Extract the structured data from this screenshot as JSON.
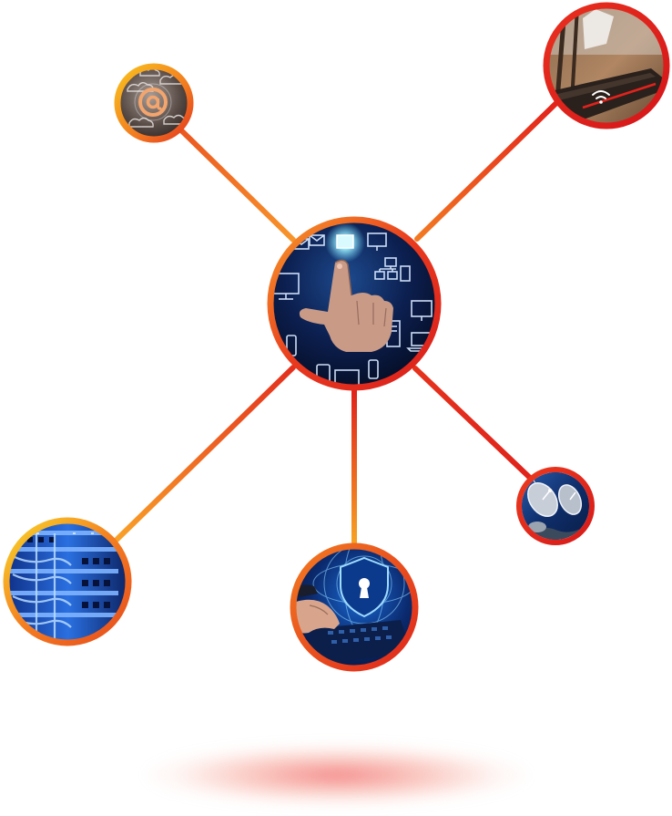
{
  "diagram": {
    "type": "hub-and-spoke network illustration",
    "colors": {
      "ring_orange": "#f47a1f",
      "ring_red": "#e0231c",
      "ring_yellow": "#f6c21a",
      "connector_orange": "#f28a2a",
      "connector_red": "#e12a1f",
      "image_navy": "#0b1d4a",
      "image_blue": "#1b6fd1",
      "glow_cyan": "#7fe6ff"
    },
    "nodes": [
      {
        "id": "hub",
        "name": "touchscreen-network-hub",
        "icon": "touch-hand-devices-icon"
      },
      {
        "id": "cloud",
        "name": "cloud-email-node",
        "icon": "cloud-at-icon"
      },
      {
        "id": "router",
        "name": "wifi-router-node",
        "icon": "wifi-router-icon"
      },
      {
        "id": "server",
        "name": "server-rack-node",
        "icon": "patch-panel-icon"
      },
      {
        "id": "security",
        "name": "cyber-security-node",
        "icon": "shield-lock-icon"
      },
      {
        "id": "satellite",
        "name": "satellite-dish-node",
        "icon": "satellite-dish-icon"
      }
    ],
    "edges": [
      {
        "from": "hub",
        "to": "cloud"
      },
      {
        "from": "hub",
        "to": "router"
      },
      {
        "from": "hub",
        "to": "server"
      },
      {
        "from": "hub",
        "to": "security"
      },
      {
        "from": "hub",
        "to": "satellite"
      }
    ]
  }
}
